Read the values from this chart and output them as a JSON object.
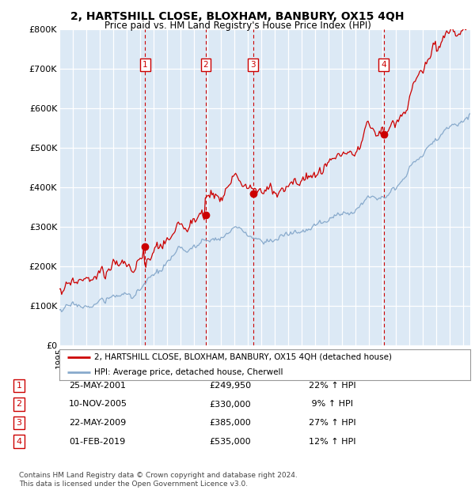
{
  "title1": "2, HARTSHILL CLOSE, BLOXHAM, BANBURY, OX15 4QH",
  "title2": "Price paid vs. HM Land Registry's House Price Index (HPI)",
  "background_color": "#dce9f5",
  "sale_prices": [
    249950,
    330000,
    385000,
    535000
  ],
  "sale_labels": [
    "1",
    "2",
    "3",
    "4"
  ],
  "sale_date_str": [
    "25-MAY-2001",
    "10-NOV-2005",
    "22-MAY-2009",
    "01-FEB-2019"
  ],
  "sale_price_str": [
    "£249,950",
    "£330,000",
    "£385,000",
    "£535,000"
  ],
  "sale_pct_str": [
    "22% ↑ HPI",
    " 9% ↑ HPI",
    "27% ↑ HPI",
    "12% ↑ HPI"
  ],
  "legend_label_red": "2, HARTSHILL CLOSE, BLOXHAM, BANBURY, OX15 4QH (detached house)",
  "legend_label_blue": "HPI: Average price, detached house, Cherwell",
  "footer": "Contains HM Land Registry data © Crown copyright and database right 2024.\nThis data is licensed under the Open Government Licence v3.0.",
  "red_color": "#cc0000",
  "blue_color": "#88aacc",
  "dashed_color": "#cc0000",
  "yticks": [
    0,
    100000,
    200000,
    300000,
    400000,
    500000,
    600000,
    700000,
    800000
  ],
  "ytick_labels": [
    "£0",
    "£100K",
    "£200K",
    "£300K",
    "£400K",
    "£500K",
    "£600K",
    "£700K",
    "£800K"
  ],
  "xmin": 1995.0,
  "xmax": 2025.5,
  "ymin": 0,
  "ymax": 800000,
  "sale_times": [
    2001.37,
    2005.87,
    2009.37,
    2019.08
  ]
}
